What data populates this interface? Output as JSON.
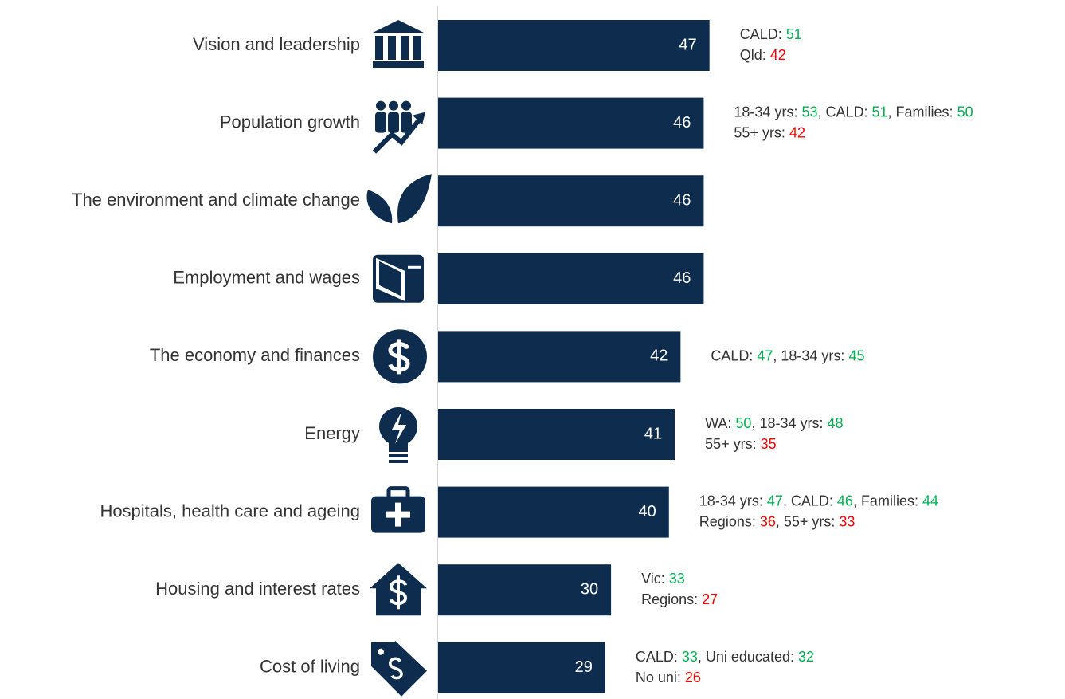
{
  "chart_data": {
    "type": "bar",
    "orientation": "horizontal",
    "color": "#0e2c4e",
    "categories": [
      "Vision and leadership",
      "Population growth",
      "The environment and climate change",
      "Employment and wages",
      "The economy and finances",
      "Energy",
      "Hospitals, health care and ageing",
      "Housing and interest rates",
      "Cost of living"
    ],
    "values": [
      47,
      46,
      46,
      46,
      42,
      41,
      40,
      30,
      29
    ],
    "annotations": [
      [
        [
          {
            "text": "CALD: ",
            "value": 51,
            "color": "#00b050"
          }
        ],
        [
          {
            "text": "Qld: ",
            "value": 42,
            "color": "#ff0000"
          }
        ]
      ],
      [
        [
          {
            "text": "18-34 yrs: ",
            "value": 53,
            "color": "#00b050"
          },
          {
            "text": ", CALD: ",
            "value": 51,
            "color": "#00b050"
          },
          {
            "text": ", Families: ",
            "value": 50,
            "color": "#00b050"
          }
        ],
        [
          {
            "text": "55+ yrs: ",
            "value": 42,
            "color": "#ff0000"
          }
        ]
      ],
      [],
      [],
      [
        [
          {
            "text": "CALD: ",
            "value": 47,
            "color": "#00b050"
          },
          {
            "text": ", 18-34 yrs: ",
            "value": 45,
            "color": "#00b050"
          }
        ]
      ],
      [
        [
          {
            "text": "WA: ",
            "value": 50,
            "color": "#00b050"
          },
          {
            "text": ", 18-34 yrs: ",
            "value": 48,
            "color": "#00b050"
          }
        ],
        [
          {
            "text": "55+ yrs: ",
            "value": 35,
            "color": "#ff0000"
          }
        ]
      ],
      [
        [
          {
            "text": "18-34 yrs: ",
            "value": 47,
            "color": "#00b050"
          },
          {
            "text": ", CALD: ",
            "value": 46,
            "color": "#00b050"
          },
          {
            "text": ", Families: ",
            "value": 44,
            "color": "#00b050"
          }
        ],
        [
          {
            "text": "Regions: ",
            "value": 36,
            "color": "#ff0000"
          },
          {
            "text": ", 55+ yrs: ",
            "value": 33,
            "color": "#ff0000"
          }
        ]
      ],
      [
        [
          {
            "text": "Vic: ",
            "value": 33,
            "color": "#00b050"
          }
        ],
        [
          {
            "text": "Regions: ",
            "value": 27,
            "color": "#ff0000"
          }
        ]
      ],
      [
        [
          {
            "text": "CALD: ",
            "value": 33,
            "color": "#00b050"
          },
          {
            "text": ", Uni educated: ",
            "value": 32,
            "color": "#00b050"
          }
        ],
        [
          {
            "text": "No uni: ",
            "value": 26,
            "color": "#ff0000"
          }
        ]
      ]
    ]
  }
}
